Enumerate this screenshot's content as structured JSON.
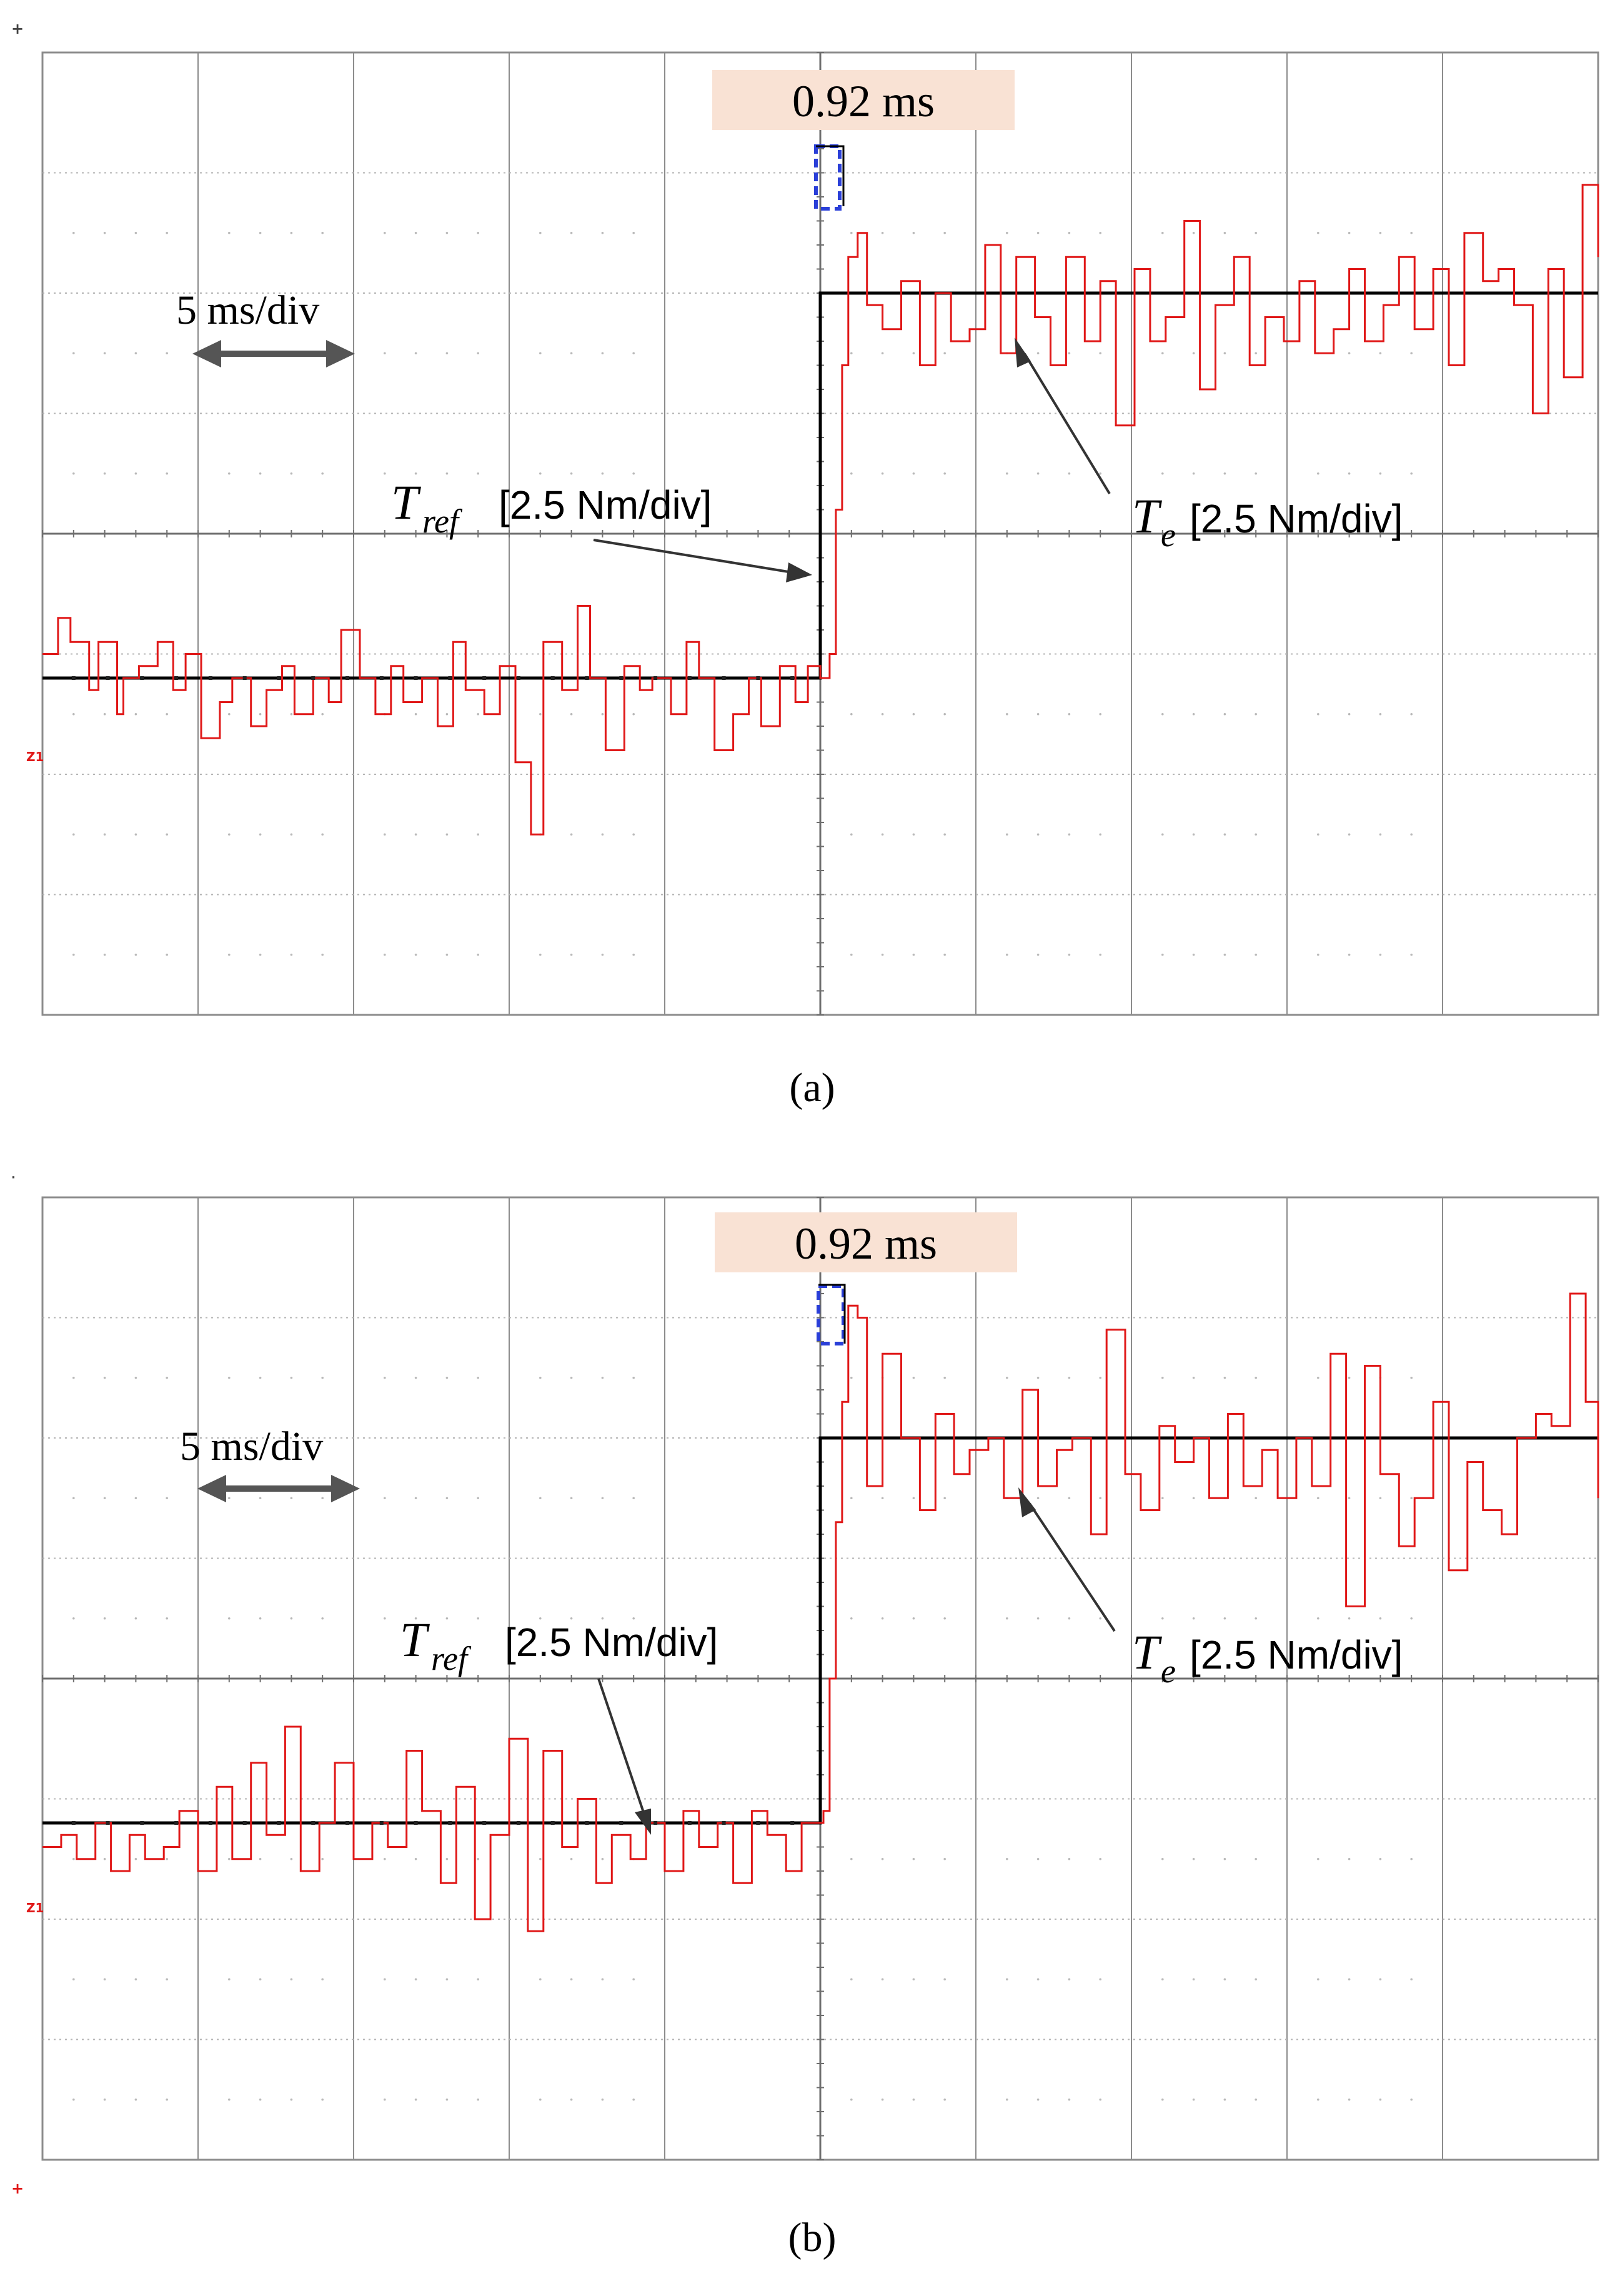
{
  "figure": {
    "panels": [
      {
        "id": "a",
        "caption": "(a)",
        "timebase": "5 ms/div",
        "delay_label": "0.92 ms",
        "tref_symbol": "T",
        "tref_subscript": "ref",
        "tref_scale": "[2.5 Nm/div]",
        "te_symbol": "T",
        "te_subscript": "e",
        "te_scale": "[2.5 Nm/div]",
        "channel_marker": "Z1"
      },
      {
        "id": "b",
        "caption": "(b)",
        "timebase": "5 ms/div",
        "delay_label": "0.92 ms",
        "tref_symbol": "T",
        "tref_subscript": "ref",
        "tref_scale": "[2.5 Nm/div]",
        "te_symbol": "T",
        "te_subscript": "e",
        "te_scale": "[2.5 Nm/div]",
        "channel_marker": "Z1"
      }
    ]
  },
  "colors": {
    "te_trace": "#e01818",
    "tref_trace": "#000000",
    "grid_major": "#8c8c8c",
    "grid_minor": "#b4b4b4",
    "delay_bracket": "#2a3fd8",
    "delay_label_bg": "#f9e2d4"
  },
  "chart_data": [
    {
      "type": "line",
      "title": "",
      "xlabel": "",
      "ylabel": "",
      "x_unit": "div",
      "y_unit": "div",
      "xlim": [
        0,
        10
      ],
      "ylim": [
        -4,
        4
      ],
      "grid": true,
      "series": [
        {
          "name": "T_ref",
          "x": [
            0,
            5.0,
            5.0,
            10
          ],
          "y": [
            -1.2,
            -1.2,
            2.0,
            2.0
          ]
        },
        {
          "name": "T_e",
          "x": [
            0.0,
            0.1,
            0.18,
            0.3,
            0.36,
            0.48,
            0.52,
            0.62,
            0.74,
            0.84,
            0.92,
            1.02,
            1.14,
            1.22,
            1.34,
            1.44,
            1.54,
            1.62,
            1.74,
            1.84,
            1.92,
            2.04,
            2.14,
            2.24,
            2.32,
            2.44,
            2.54,
            2.64,
            2.72,
            2.84,
            2.94,
            3.04,
            3.14,
            3.22,
            3.34,
            3.44,
            3.52,
            3.62,
            3.74,
            3.84,
            3.92,
            4.04,
            4.14,
            4.22,
            4.32,
            4.44,
            4.54,
            4.62,
            4.74,
            4.84,
            4.92,
            5.0,
            5.02,
            5.06,
            5.1,
            5.14,
            5.18,
            5.24,
            5.3,
            5.4,
            5.52,
            5.64,
            5.74,
            5.84,
            5.96,
            6.06,
            6.16,
            6.26,
            6.38,
            6.48,
            6.58,
            6.7,
            6.8,
            6.9,
            7.02,
            7.12,
            7.22,
            7.34,
            7.44,
            7.54,
            7.66,
            7.76,
            7.86,
            7.98,
            8.08,
            8.18,
            8.3,
            8.4,
            8.5,
            8.62,
            8.72,
            8.82,
            8.94,
            9.04,
            9.14,
            9.26,
            9.36,
            9.46,
            9.58,
            9.68,
            9.78,
            9.9,
            10.0
          ],
          "y": [
            -1.0,
            -0.7,
            -0.9,
            -1.3,
            -0.9,
            -1.5,
            -1.2,
            -1.1,
            -0.9,
            -1.3,
            -1.0,
            -1.7,
            -1.4,
            -1.2,
            -1.6,
            -1.3,
            -1.1,
            -1.5,
            -1.2,
            -1.4,
            -0.8,
            -1.2,
            -1.5,
            -1.1,
            -1.4,
            -1.2,
            -1.6,
            -0.9,
            -1.3,
            -1.5,
            -1.1,
            -1.9,
            -2.5,
            -0.9,
            -1.3,
            -0.6,
            -1.2,
            -1.8,
            -1.1,
            -1.3,
            -1.2,
            -1.5,
            -0.9,
            -1.2,
            -1.8,
            -1.5,
            -1.2,
            -1.6,
            -1.1,
            -1.4,
            -1.1,
            -1.2,
            -1.2,
            -1.0,
            0.2,
            1.4,
            2.3,
            2.5,
            1.9,
            1.7,
            2.1,
            1.4,
            2.0,
            1.6,
            1.7,
            2.4,
            1.5,
            2.3,
            1.8,
            1.4,
            2.3,
            1.6,
            2.1,
            0.9,
            2.2,
            1.6,
            1.8,
            2.6,
            1.2,
            1.9,
            2.3,
            1.4,
            1.8,
            1.6,
            2.1,
            1.5,
            1.7,
            2.2,
            1.6,
            1.9,
            2.3,
            1.7,
            2.2,
            1.4,
            2.5,
            2.1,
            2.2,
            1.9,
            1.0,
            2.2,
            1.3,
            2.9,
            2.3
          ]
        }
      ]
    },
    {
      "type": "line",
      "title": "",
      "xlabel": "",
      "ylabel": "",
      "x_unit": "div",
      "y_unit": "div",
      "xlim": [
        0,
        10
      ],
      "ylim": [
        -4,
        4
      ],
      "grid": true,
      "series": [
        {
          "name": "T_ref",
          "x": [
            0,
            5.0,
            5.0,
            10
          ],
          "y": [
            -1.2,
            -1.2,
            2.0,
            2.0
          ]
        },
        {
          "name": "T_e",
          "x": [
            0.0,
            0.12,
            0.22,
            0.34,
            0.44,
            0.56,
            0.66,
            0.78,
            0.88,
            1.0,
            1.12,
            1.22,
            1.34,
            1.44,
            1.56,
            1.66,
            1.78,
            1.88,
            2.0,
            2.12,
            2.22,
            2.34,
            2.44,
            2.56,
            2.66,
            2.78,
            2.88,
            3.0,
            3.12,
            3.22,
            3.34,
            3.44,
            3.56,
            3.66,
            3.78,
            3.88,
            4.0,
            4.12,
            4.22,
            4.34,
            4.44,
            4.56,
            4.66,
            4.78,
            4.88,
            5.0,
            5.02,
            5.06,
            5.1,
            5.14,
            5.18,
            5.24,
            5.3,
            5.4,
            5.52,
            5.64,
            5.74,
            5.86,
            5.96,
            6.08,
            6.18,
            6.3,
            6.4,
            6.52,
            6.62,
            6.74,
            6.84,
            6.96,
            7.06,
            7.18,
            7.28,
            7.4,
            7.5,
            7.62,
            7.72,
            7.84,
            7.94,
            8.06,
            8.16,
            8.28,
            8.38,
            8.5,
            8.6,
            8.72,
            8.82,
            8.94,
            9.04,
            9.16,
            9.26,
            9.38,
            9.48,
            9.6,
            9.7,
            9.82,
            9.92,
            10.0
          ],
          "y": [
            -1.4,
            -1.3,
            -1.5,
            -1.2,
            -1.6,
            -1.3,
            -1.5,
            -1.4,
            -1.1,
            -1.6,
            -0.9,
            -1.5,
            -0.7,
            -1.3,
            -0.4,
            -1.6,
            -1.2,
            -0.7,
            -1.5,
            -1.2,
            -1.4,
            -0.6,
            -1.1,
            -1.7,
            -0.9,
            -2.0,
            -1.3,
            -0.5,
            -2.1,
            -0.6,
            -1.4,
            -1.0,
            -1.7,
            -1.3,
            -1.5,
            -1.2,
            -1.6,
            -1.1,
            -1.4,
            -1.2,
            -1.7,
            -1.1,
            -1.3,
            -1.6,
            -1.2,
            -1.2,
            -1.1,
            0.0,
            1.3,
            2.3,
            3.1,
            3.0,
            1.6,
            2.7,
            2.0,
            1.4,
            2.2,
            1.7,
            1.9,
            2.0,
            1.5,
            2.4,
            1.6,
            1.9,
            2.0,
            1.2,
            2.9,
            1.7,
            1.4,
            2.1,
            1.8,
            2.0,
            1.5,
            2.2,
            1.6,
            1.9,
            1.5,
            2.0,
            1.6,
            2.7,
            0.6,
            2.6,
            1.7,
            1.1,
            1.5,
            2.3,
            0.9,
            1.8,
            1.4,
            1.2,
            2.0,
            2.2,
            2.1,
            3.2,
            2.3,
            1.5
          ]
        }
      ]
    }
  ]
}
